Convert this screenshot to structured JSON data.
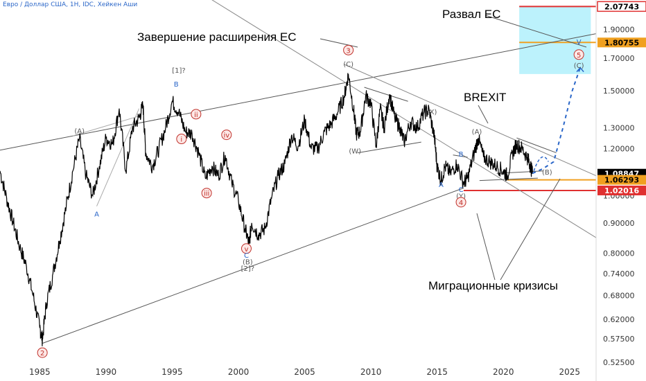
{
  "header": {
    "symbol": "Евро / Доллар США, 1Н, IDC, Хейкен Аши"
  },
  "annotations": {
    "collapse": "Развал ЕС",
    "expansion": "Завершение расширения ЕС",
    "brexit": "BREXIT",
    "migration": "Миграционные кризисы"
  },
  "colors": {
    "price": "#000000",
    "wave_blue": "#2a66c8",
    "wave_red": "#c0302a",
    "support_red": "#e03030",
    "support_orange": "#f0a020",
    "target_zone": "#b0f0fb",
    "projection": "#2a66c8",
    "last_price_tag": "#000000"
  },
  "chart_data": {
    "type": "line",
    "title": "Евро / Доллар США, 1Н, IDC, Хейкен Аши",
    "xlabel": "",
    "ylabel": "",
    "log_scale": true,
    "grid": false,
    "xlim": [
      1982,
      2027
    ],
    "ylim": [
      0.5195,
      2.13
    ],
    "x_ticks": [
      "1985",
      "1990",
      "1995",
      "2000",
      "2005",
      "2010",
      "2015",
      "2020",
      "2025"
    ],
    "y_ticks": [
      "0.52500",
      "0.57500",
      "0.62000",
      "0.68000",
      "0.74000",
      "0.80000",
      "0.90000",
      "1.00000",
      "1.20000",
      "1.30000",
      "1.50000",
      "1.70000",
      "1.90000"
    ],
    "price_tags": [
      {
        "label": "2.07743",
        "value": 2.07743,
        "style": "red-outline"
      },
      {
        "label": "1.80755",
        "value": 1.80755,
        "style": "orange"
      },
      {
        "label": "1.08847",
        "value": 1.08847,
        "style": "black"
      },
      {
        "label": "1.06293",
        "value": 1.06293,
        "style": "orange"
      },
      {
        "label": "1.02016",
        "value": 1.02016,
        "style": "red"
      }
    ],
    "series": [
      {
        "values": [
          [
            1982.0,
            1.1
          ],
          [
            1982.5,
            0.99
          ],
          [
            1983.0,
            0.9
          ],
          [
            1983.5,
            0.82
          ],
          [
            1984.0,
            0.76
          ],
          [
            1984.5,
            0.68
          ],
          [
            1985.0,
            0.6
          ],
          [
            1985.2,
            0.574
          ],
          [
            1985.5,
            0.66
          ],
          [
            1986.0,
            0.74
          ],
          [
            1986.5,
            0.84
          ],
          [
            1987.0,
            0.96
          ],
          [
            1987.5,
            1.1
          ],
          [
            1988.0,
            1.25
          ],
          [
            1988.5,
            1.08
          ],
          [
            1989.0,
            1.0
          ],
          [
            1989.5,
            1.12
          ],
          [
            1990.0,
            1.25
          ],
          [
            1990.5,
            1.22
          ],
          [
            1991.0,
            1.4
          ],
          [
            1991.5,
            1.1
          ],
          [
            1992.0,
            1.3
          ],
          [
            1992.5,
            1.35
          ],
          [
            1992.8,
            1.42
          ],
          [
            1993.0,
            1.18
          ],
          [
            1993.5,
            1.12
          ],
          [
            1994.0,
            1.2
          ],
          [
            1994.5,
            1.3
          ],
          [
            1995.0,
            1.44
          ],
          [
            1995.5,
            1.38
          ],
          [
            1996.0,
            1.28
          ],
          [
            1996.5,
            1.27
          ],
          [
            1997.0,
            1.18
          ],
          [
            1997.5,
            1.07
          ],
          [
            1998.0,
            1.12
          ],
          [
            1998.5,
            1.08
          ],
          [
            1999.0,
            1.17
          ],
          [
            1999.5,
            1.05
          ],
          [
            2000.0,
            0.98
          ],
          [
            2000.5,
            0.88
          ],
          [
            2000.8,
            0.83
          ],
          [
            2001.0,
            0.9
          ],
          [
            2001.5,
            0.86
          ],
          [
            2002.0,
            0.88
          ],
          [
            2002.5,
            0.99
          ],
          [
            2003.0,
            1.08
          ],
          [
            2003.5,
            1.13
          ],
          [
            2004.0,
            1.26
          ],
          [
            2004.5,
            1.21
          ],
          [
            2005.0,
            1.34
          ],
          [
            2005.5,
            1.2
          ],
          [
            2006.0,
            1.2
          ],
          [
            2006.5,
            1.28
          ],
          [
            2007.0,
            1.32
          ],
          [
            2007.5,
            1.38
          ],
          [
            2008.0,
            1.47
          ],
          [
            2008.3,
            1.6
          ],
          [
            2008.7,
            1.39
          ],
          [
            2008.9,
            1.27
          ],
          [
            2009.2,
            1.28
          ],
          [
            2009.6,
            1.47
          ],
          [
            2010.0,
            1.43
          ],
          [
            2010.4,
            1.21
          ],
          [
            2010.7,
            1.4
          ],
          [
            2011.0,
            1.3
          ],
          [
            2011.4,
            1.48
          ],
          [
            2011.8,
            1.35
          ],
          [
            2012.2,
            1.3
          ],
          [
            2012.5,
            1.23
          ],
          [
            2013.0,
            1.33
          ],
          [
            2013.5,
            1.3
          ],
          [
            2014.0,
            1.38
          ],
          [
            2014.4,
            1.39
          ],
          [
            2014.8,
            1.25
          ],
          [
            2015.0,
            1.12
          ],
          [
            2015.3,
            1.06
          ],
          [
            2015.6,
            1.12
          ],
          [
            2016.0,
            1.09
          ],
          [
            2016.5,
            1.13
          ],
          [
            2017.0,
            1.05
          ],
          [
            2017.3,
            1.07
          ],
          [
            2017.8,
            1.18
          ],
          [
            2018.1,
            1.25
          ],
          [
            2018.5,
            1.16
          ],
          [
            2019.0,
            1.14
          ],
          [
            2019.5,
            1.12
          ],
          [
            2020.0,
            1.1
          ],
          [
            2020.3,
            1.08
          ],
          [
            2020.7,
            1.18
          ],
          [
            2021.0,
            1.22
          ],
          [
            2021.4,
            1.2
          ],
          [
            2021.8,
            1.16
          ],
          [
            2022.0,
            1.13
          ],
          [
            2022.2,
            1.09
          ]
        ]
      }
    ],
    "projection": [
      [
        2022.2,
        1.09
      ],
      [
        2023.0,
        1.11
      ],
      [
        2023.8,
        1.14
      ],
      [
        2024.5,
        1.3
      ],
      [
        2025.2,
        1.5
      ],
      [
        2025.8,
        1.64
      ]
    ],
    "wave_labels": [
      {
        "text": "2",
        "x": 1985.2,
        "y": 0.545,
        "circle": true,
        "color": "red"
      },
      {
        "text": "(A)",
        "x": 1988.0,
        "y": 1.285,
        "color": "gray"
      },
      {
        "text": "A",
        "x": 1989.3,
        "y": 0.932,
        "color": "blue"
      },
      {
        "text": "[1]?",
        "x": 1995.5,
        "y": 1.625,
        "color": "gray"
      },
      {
        "text": "B",
        "x": 1995.3,
        "y": 1.54,
        "color": "blue"
      },
      {
        "text": "ii",
        "x": 1996.8,
        "y": 1.37,
        "circle": true,
        "color": "red"
      },
      {
        "text": "i",
        "x": 1995.7,
        "y": 1.245,
        "circle": true,
        "color": "red"
      },
      {
        "text": "iv",
        "x": 1999.1,
        "y": 1.265,
        "circle": true,
        "color": "red"
      },
      {
        "text": "iii",
        "x": 1997.6,
        "y": 1.01,
        "circle": true,
        "color": "red"
      },
      {
        "text": "v",
        "x": 2000.6,
        "y": 0.815,
        "circle": true,
        "color": "red"
      },
      {
        "text": "C",
        "x": 2000.6,
        "y": 0.795,
        "color": "blue"
      },
      {
        "text": "(B)",
        "x": 2000.7,
        "y": 0.775,
        "color": "gray"
      },
      {
        "text": "[2]?",
        "x": 2000.7,
        "y": 0.756,
        "color": "gray"
      },
      {
        "text": "3",
        "x": 2008.3,
        "y": 1.755,
        "circle": true,
        "color": "red"
      },
      {
        "text": "(C)",
        "x": 2008.3,
        "y": 1.665,
        "color": "gray"
      },
      {
        "text": "(W)",
        "x": 2008.8,
        "y": 1.19,
        "color": "gray"
      },
      {
        "text": "(X)",
        "x": 2014.6,
        "y": 1.385,
        "color": "gray"
      },
      {
        "text": "B",
        "x": 2016.8,
        "y": 1.175,
        "color": "blue"
      },
      {
        "text": "A",
        "x": 2015.3,
        "y": 1.045,
        "color": "blue"
      },
      {
        "text": "(A)",
        "x": 2018.0,
        "y": 1.282,
        "color": "gray"
      },
      {
        "text": "C",
        "x": 2016.8,
        "y": 1.025,
        "color": "blue"
      },
      {
        "text": "(Y)",
        "x": 2016.8,
        "y": 1.0,
        "color": "gray"
      },
      {
        "text": "4",
        "x": 2016.8,
        "y": 0.975,
        "circle": true,
        "color": "red"
      },
      {
        "text": "(B)",
        "x": 2023.3,
        "y": 1.097,
        "color": "gray"
      },
      {
        "text": "V",
        "x": 2025.7,
        "y": 1.815,
        "color": "blue"
      },
      {
        "text": "5",
        "x": 2025.7,
        "y": 1.725,
        "circle": true,
        "color": "red"
      },
      {
        "text": "(C)",
        "x": 2025.7,
        "y": 1.655,
        "color": "gray"
      }
    ]
  }
}
